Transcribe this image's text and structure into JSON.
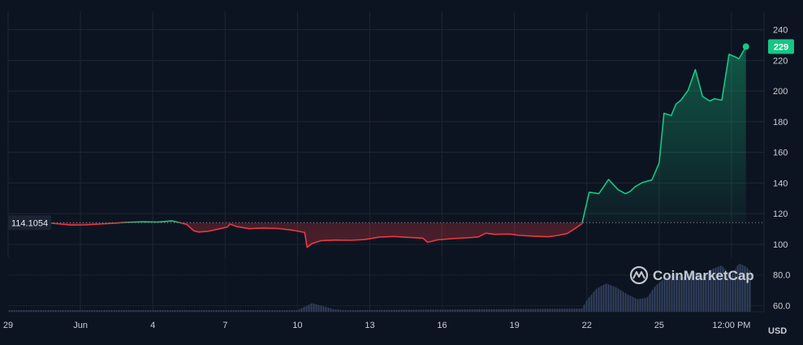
{
  "chart_data": {
    "type": "line",
    "currency_label": "USD",
    "reference_price": "114.1054",
    "reference_value": 114.1054,
    "last_price_label": "229",
    "last_value": 229,
    "ylim": [
      56,
      252
    ],
    "y_ticks": [
      60,
      80,
      100,
      120,
      140,
      160,
      180,
      200,
      220,
      240
    ],
    "y_tick_labels": [
      "60.0",
      "80.0",
      "100",
      "120",
      "140",
      "160",
      "180",
      "200",
      "220",
      "240"
    ],
    "x_ticks": [
      {
        "day": 0,
        "label": "29"
      },
      {
        "day": 3,
        "label": "Jun"
      },
      {
        "day": 6,
        "label": "4"
      },
      {
        "day": 9,
        "label": "7"
      },
      {
        "day": 12,
        "label": "10"
      },
      {
        "day": 15,
        "label": "13"
      },
      {
        "day": 18,
        "label": "16"
      },
      {
        "day": 21,
        "label": "19"
      },
      {
        "day": 24,
        "label": "22"
      },
      {
        "day": 27,
        "label": "25"
      },
      {
        "day": 30,
        "label": "12:00 PM"
      }
    ],
    "x_range_days": [
      0,
      31.35
    ],
    "price_series": {
      "days": [
        1.5,
        2.0,
        2.6,
        3.2,
        3.8,
        4.4,
        5.0,
        5.6,
        6.2,
        6.8,
        7.4,
        7.7,
        7.9,
        8.3,
        8.8,
        9.1,
        9.2,
        9.5,
        10.0,
        10.6,
        11.2,
        11.8,
        12.3,
        12.4,
        12.6,
        13.0,
        13.6,
        14.2,
        14.8,
        15.4,
        16.0,
        16.6,
        17.2,
        17.4,
        17.8,
        18.4,
        19.0,
        19.5,
        19.8,
        20.2,
        20.8,
        21.2,
        21.8,
        22.4,
        22.8,
        23.2,
        23.5,
        23.8,
        24.1,
        24.5,
        24.9,
        25.3,
        25.6,
        25.8,
        26.0,
        26.3,
        26.7,
        27.0,
        27.2,
        27.5,
        27.7,
        27.9,
        28.2,
        28.5,
        28.8,
        29.1,
        29.3,
        29.6,
        29.9,
        30.2,
        30.3,
        30.4,
        30.6
      ],
      "values": [
        114.3,
        113.5,
        112.6,
        112.7,
        113.2,
        113.8,
        114.4,
        114.7,
        114.5,
        115.3,
        113.0,
        108.8,
        108.0,
        108.5,
        110.2,
        111.3,
        113.2,
        111.5,
        110.2,
        110.6,
        110.3,
        109.2,
        107.7,
        98.0,
        100.5,
        102.4,
        102.8,
        102.6,
        103.1,
        104.7,
        105.1,
        104.5,
        104.0,
        101.3,
        102.9,
        103.7,
        104.2,
        104.8,
        107.2,
        106.5,
        106.7,
        105.8,
        105.3,
        104.9,
        105.8,
        107.1,
        110.2,
        113.5,
        134.0,
        133.0,
        142.3,
        135.6,
        133.0,
        134.5,
        137.5,
        140.3,
        142.0,
        153.0,
        185.5,
        184.0,
        191.5,
        194.0,
        200.5,
        214.0,
        196.5,
        193.5,
        195.0,
        194.0,
        224.0,
        222.0,
        221.0,
        223.5,
        229.0
      ]
    },
    "volume_series": {
      "days": [
        0.0,
        12.0,
        12.6,
        13.5,
        14.0,
        23.8,
        24.0,
        24.4,
        24.8,
        25.2,
        25.7,
        26.1,
        26.5,
        26.8,
        27.2,
        27.6,
        28.0,
        28.4,
        28.8,
        29.2,
        29.6,
        30.0,
        30.3,
        30.6,
        30.8
      ],
      "values": [
        0.03,
        0.03,
        0.17,
        0.05,
        0.03,
        0.06,
        0.23,
        0.46,
        0.56,
        0.49,
        0.34,
        0.25,
        0.28,
        0.49,
        0.66,
        0.76,
        0.69,
        0.81,
        0.71,
        0.85,
        0.92,
        0.71,
        0.96,
        0.9,
        0.8
      ]
    },
    "watermark": {
      "text": "CoinMarketCap",
      "icon": "coinmarketcap-logo-icon"
    },
    "colors": {
      "background": "#0d1421",
      "grid": "#1f2633",
      "up": "#16c784",
      "down": "#ea3943",
      "volume": "#3b4a6b",
      "reference_line": "#8a919c",
      "badge": "#16c784"
    }
  }
}
